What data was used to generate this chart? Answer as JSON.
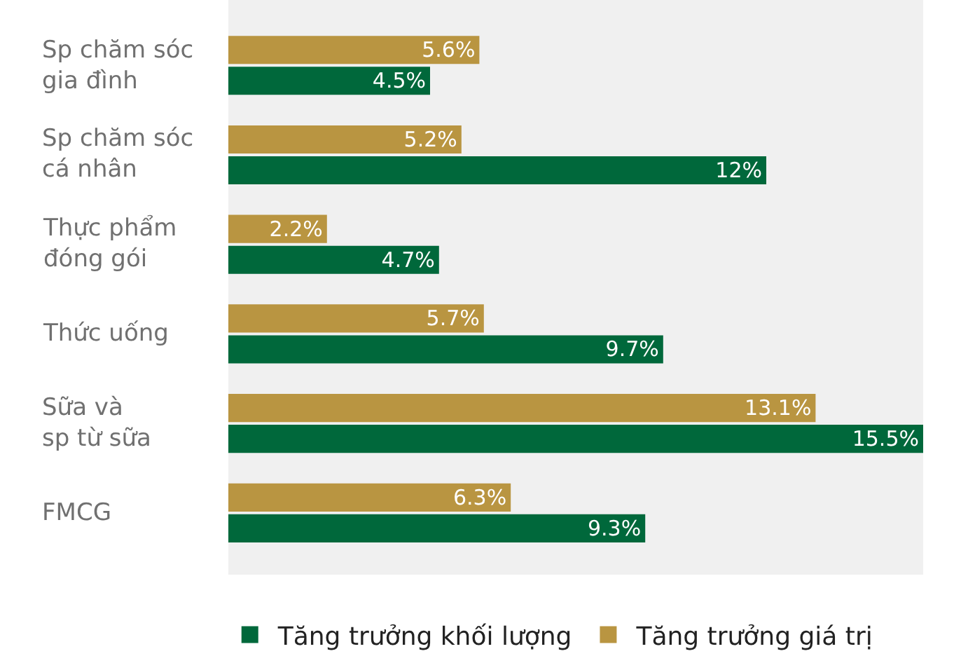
{
  "chart_data": {
    "type": "bar",
    "orientation": "horizontal",
    "categories": [
      "Sp chăm sóc\ngia đình",
      "Sp chăm sóc\ncá nhân",
      "Thực phẩm\nđóng gói",
      "Thức uống",
      "Sữa và\nsp từ sữa",
      "FMCG"
    ],
    "series": [
      {
        "name": "Tăng trưởng khối lượng",
        "color": "#00683b",
        "values": [
          4.5,
          12,
          4.7,
          9.7,
          15.5,
          9.3
        ],
        "value_labels": [
          "4.5%",
          "12%",
          "4.7%",
          "9.7%",
          "15.5%",
          "9.3%"
        ]
      },
      {
        "name": "Tăng trưởng giá trị",
        "color": "#b99541",
        "values": [
          5.6,
          5.2,
          2.2,
          5.7,
          13.1,
          6.3
        ],
        "value_labels": [
          "5.6%",
          "5.2%",
          "2.2%",
          "5.7%",
          "13.1%",
          "6.3%"
        ]
      }
    ],
    "xlim": [
      0,
      15.5
    ],
    "tick_labels": "y",
    "grid": false,
    "legend": "bottom"
  }
}
